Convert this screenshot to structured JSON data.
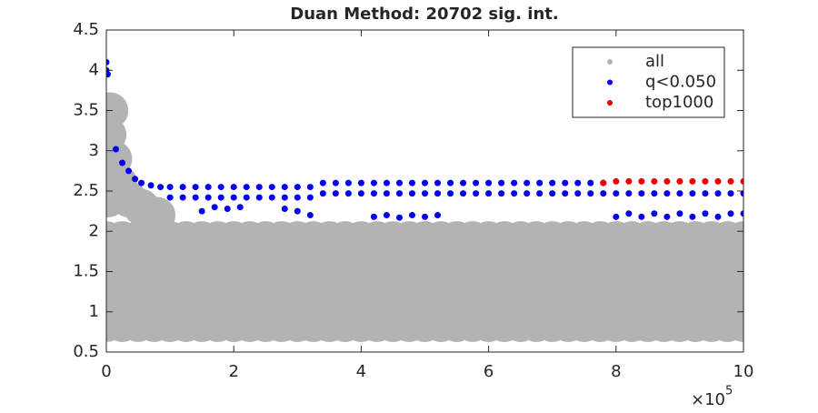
{
  "chart_data": {
    "type": "scatter",
    "title": "Duan Method: 20702 sig. int.",
    "xlim": [
      0,
      10
    ],
    "xticks": [
      0,
      2,
      4,
      6,
      8,
      10
    ],
    "ylim": [
      0.5,
      4.5
    ],
    "yticks": [
      0.5,
      1,
      1.5,
      2,
      2.5,
      3,
      3.5,
      4,
      4.5
    ],
    "x_multiplier_base": "×10",
    "x_multiplier_exponent": "5",
    "legend": "upper right",
    "series": [
      {
        "name": "all",
        "color": "#b3b3b3",
        "x": [
          0,
          0.25,
          0.5,
          0.75,
          1,
          1.25,
          1.5,
          1.75,
          2,
          2.25,
          2.5,
          2.75,
          3,
          3.25,
          3.5,
          3.75,
          4,
          4.25,
          4.5,
          4.75,
          5,
          5.25,
          5.5,
          5.75,
          6,
          6.25,
          6.5,
          6.75,
          7,
          7.25,
          7.5,
          7.75,
          8,
          8.25,
          8.5,
          8.75,
          9,
          9.25,
          9.5,
          9.75,
          10,
          0,
          0.25,
          0.5,
          0.75,
          1,
          1.25,
          1.5,
          1.75,
          2,
          2.25,
          2.5,
          2.75,
          3,
          3.25,
          3.5,
          3.75,
          4,
          4.25,
          4.5,
          4.75,
          5,
          5.25,
          5.5,
          5.75,
          6,
          6.25,
          6.5,
          6.75,
          7,
          7.25,
          7.5,
          7.75,
          8,
          8.25,
          8.5,
          8.75,
          9,
          9.25,
          9.5,
          9.75,
          10,
          0,
          0.25,
          0.5,
          0.75,
          1,
          1.25,
          1.5,
          1.75,
          2,
          2.25,
          2.5,
          2.75,
          3,
          3.25,
          3.5,
          3.75,
          4,
          4.25,
          4.5,
          4.75,
          5,
          5.25,
          5.5,
          5.75,
          6,
          6.25,
          6.5,
          6.75,
          7,
          7.25,
          7.5,
          7.75,
          8,
          8.25,
          8.5,
          8.75,
          9,
          9.25,
          9.5,
          9.75,
          10,
          0,
          0.25,
          0.5,
          0.75,
          1,
          1.25,
          1.5,
          1.75,
          2,
          2.25,
          2.5,
          2.75,
          3,
          3.25,
          3.5,
          3.75,
          4,
          4.25,
          4.5,
          4.75,
          5,
          5.25,
          5.5,
          5.75,
          6,
          6.25,
          6.5,
          6.75,
          7,
          7.25,
          7.5,
          7.75,
          8,
          8.25,
          8.5,
          8.75,
          9,
          9.25,
          9.5,
          9.75,
          10,
          0.03,
          0.03,
          0.03,
          0.06,
          0.12,
          0.2,
          0.35,
          0.55,
          0.8
        ],
        "y": [
          0.85,
          0.85,
          0.85,
          0.85,
          0.85,
          0.85,
          0.85,
          0.85,
          0.85,
          0.85,
          0.85,
          0.85,
          0.85,
          0.85,
          0.85,
          0.85,
          0.85,
          0.85,
          0.85,
          0.85,
          0.85,
          0.85,
          0.85,
          0.85,
          0.85,
          0.85,
          0.85,
          0.85,
          0.85,
          0.85,
          0.85,
          0.85,
          0.85,
          0.85,
          0.85,
          0.85,
          0.85,
          0.85,
          0.85,
          0.85,
          0.85,
          1.2,
          1.2,
          1.2,
          1.2,
          1.2,
          1.2,
          1.2,
          1.2,
          1.2,
          1.2,
          1.2,
          1.2,
          1.2,
          1.2,
          1.2,
          1.2,
          1.2,
          1.2,
          1.2,
          1.2,
          1.2,
          1.2,
          1.2,
          1.2,
          1.2,
          1.2,
          1.2,
          1.2,
          1.2,
          1.2,
          1.2,
          1.2,
          1.2,
          1.2,
          1.2,
          1.2,
          1.2,
          1.2,
          1.2,
          1.2,
          1.2,
          1.55,
          1.55,
          1.55,
          1.55,
          1.55,
          1.55,
          1.55,
          1.55,
          1.55,
          1.55,
          1.55,
          1.55,
          1.55,
          1.55,
          1.55,
          1.55,
          1.55,
          1.55,
          1.55,
          1.55,
          1.55,
          1.55,
          1.55,
          1.55,
          1.55,
          1.55,
          1.55,
          1.55,
          1.55,
          1.55,
          1.55,
          1.55,
          1.55,
          1.55,
          1.55,
          1.55,
          1.55,
          1.55,
          1.55,
          1.55,
          1.55,
          1.9,
          1.9,
          1.9,
          1.9,
          1.9,
          1.9,
          1.9,
          1.9,
          1.9,
          1.9,
          1.9,
          1.9,
          1.9,
          1.9,
          1.9,
          1.9,
          1.9,
          1.9,
          1.9,
          1.9,
          1.9,
          1.9,
          1.9,
          1.9,
          1.9,
          1.9,
          1.9,
          1.9,
          1.9,
          1.9,
          1.9,
          1.9,
          1.9,
          1.9,
          1.9,
          1.9,
          1.9,
          1.9,
          1.9,
          1.9,
          1.9,
          2.4,
          2.8,
          3.2,
          3.5,
          2.9,
          2.6,
          2.4,
          2.3,
          2.2
        ]
      },
      {
        "name": "q<0.050",
        "color": "#0000ee",
        "x": [
          0,
          0,
          0.02,
          0.15,
          0.25,
          0.35,
          0.45,
          0.55,
          0.7,
          0.85,
          1,
          1.2,
          1.4,
          1.6,
          1.8,
          2,
          2.2,
          2.4,
          2.6,
          2.8,
          3,
          3.2,
          1,
          1.2,
          1.4,
          1.6,
          1.8,
          2,
          2.2,
          2.4,
          2.6,
          2.8,
          3,
          3.2,
          1.5,
          1.7,
          1.9,
          2.1,
          2.8,
          3,
          3.2,
          3.4,
          3.6,
          3.8,
          4,
          4.2,
          4.4,
          4.6,
          4.8,
          5,
          5.2,
          5.4,
          5.6,
          5.8,
          6,
          6.2,
          6.4,
          6.6,
          6.8,
          7,
          7.2,
          7.4,
          7.6,
          7.8,
          3.4,
          3.6,
          3.8,
          4,
          4.2,
          4.4,
          4.6,
          4.8,
          5,
          5.2,
          5.4,
          5.6,
          5.8,
          6,
          6.2,
          6.4,
          6.6,
          6.8,
          7,
          7.2,
          7.4,
          7.6,
          7.8,
          8,
          8.2,
          8.4,
          8.6,
          8.8,
          9,
          9.2,
          9.4,
          9.6,
          9.8,
          10,
          4.2,
          4.4,
          4.6,
          4.8,
          5,
          5.2,
          8,
          8.2,
          8.4,
          8.6,
          8.8,
          9,
          9.2,
          9.4,
          9.6,
          9.8,
          10
        ],
        "y": [
          4.1,
          4,
          3.95,
          3.02,
          2.85,
          2.75,
          2.65,
          2.6,
          2.57,
          2.55,
          2.55,
          2.55,
          2.55,
          2.55,
          2.55,
          2.55,
          2.55,
          2.55,
          2.55,
          2.55,
          2.55,
          2.55,
          2.42,
          2.42,
          2.42,
          2.42,
          2.42,
          2.42,
          2.42,
          2.42,
          2.42,
          2.42,
          2.42,
          2.42,
          2.25,
          2.3,
          2.28,
          2.3,
          2.28,
          2.25,
          2.2,
          2.6,
          2.6,
          2.6,
          2.6,
          2.6,
          2.6,
          2.6,
          2.6,
          2.6,
          2.6,
          2.6,
          2.6,
          2.6,
          2.6,
          2.6,
          2.6,
          2.6,
          2.6,
          2.6,
          2.6,
          2.6,
          2.6,
          2.6,
          2.47,
          2.47,
          2.47,
          2.47,
          2.47,
          2.47,
          2.47,
          2.47,
          2.47,
          2.47,
          2.47,
          2.47,
          2.47,
          2.47,
          2.47,
          2.47,
          2.47,
          2.47,
          2.47,
          2.47,
          2.47,
          2.47,
          2.47,
          2.47,
          2.47,
          2.47,
          2.47,
          2.47,
          2.47,
          2.47,
          2.47,
          2.47,
          2.47,
          2.47,
          2.18,
          2.2,
          2.17,
          2.2,
          2.18,
          2.2,
          2.18,
          2.22,
          2.18,
          2.22,
          2.18,
          2.22,
          2.18,
          2.22,
          2.18,
          2.22,
          2.22
        ]
      },
      {
        "name": "top1000",
        "color": "#ee0000",
        "x": [
          7.8,
          8,
          8.2,
          8.4,
          8.6,
          8.8,
          9,
          9.2,
          9.4,
          9.6,
          9.8,
          10
        ],
        "y": [
          2.6,
          2.62,
          2.62,
          2.62,
          2.62,
          2.62,
          2.62,
          2.62,
          2.62,
          2.62,
          2.62,
          2.62
        ]
      }
    ]
  }
}
